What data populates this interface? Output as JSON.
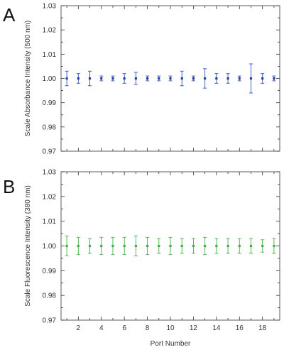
{
  "chart_data": [
    {
      "type": "scatter",
      "panel_label": "A",
      "ylabel": "Scale Absorbance Intensity (500 nm)",
      "xlabel": "",
      "ylim": [
        0.97,
        1.03
      ],
      "xlim": [
        0.5,
        19.5
      ],
      "yticks": [
        "0.97",
        "0.98",
        "0.99",
        "1.00",
        "1.01",
        "1.02",
        "1.03"
      ],
      "xticks": [
        "2",
        "4",
        "6",
        "8",
        "10",
        "12",
        "14",
        "16",
        "18"
      ],
      "x_tick_values": [
        2,
        4,
        6,
        8,
        10,
        12,
        14,
        16,
        18
      ],
      "show_x_tick_labels": false,
      "grid": false,
      "marker_color": "#1f3fa0",
      "error_color": "#3050b8",
      "series": [
        {
          "x": [
            1,
            2,
            3,
            4,
            5,
            6,
            7,
            8,
            9,
            10,
            11,
            12,
            13,
            14,
            15,
            16,
            17,
            18,
            19
          ],
          "y": [
            1.0,
            1.0,
            1.0,
            1.0,
            1.0,
            1.0,
            1.0,
            1.0,
            1.0,
            1.0,
            1.0,
            1.0,
            1.0,
            1.0,
            1.0,
            1.0,
            1.0,
            1.0,
            1.0
          ],
          "yerr": [
            0.003,
            0.002,
            0.003,
            0.001,
            0.001,
            0.002,
            0.0025,
            0.001,
            0.001,
            0.001,
            0.003,
            0.001,
            0.004,
            0.002,
            0.002,
            0.001,
            0.006,
            0.002,
            0.001
          ]
        }
      ]
    },
    {
      "type": "scatter",
      "panel_label": "B",
      "ylabel": "Scale Fluorescence Intensity (380 nm)",
      "xlabel": "Port Number",
      "ylim": [
        0.97,
        1.03
      ],
      "xlim": [
        0.5,
        19.5
      ],
      "yticks": [
        "0.97",
        "0.98",
        "0.99",
        "1.00",
        "1.01",
        "1.02",
        "1.03"
      ],
      "xticks": [
        "2",
        "4",
        "6",
        "8",
        "10",
        "12",
        "14",
        "16",
        "18"
      ],
      "x_tick_values": [
        2,
        4,
        6,
        8,
        10,
        12,
        14,
        16,
        18
      ],
      "show_x_tick_labels": true,
      "grid": false,
      "marker_color": "#44b044",
      "error_color": "#44b044",
      "series": [
        {
          "x": [
            1,
            2,
            3,
            4,
            5,
            6,
            7,
            8,
            9,
            10,
            11,
            12,
            13,
            14,
            15,
            16,
            17,
            18,
            19
          ],
          "y": [
            1.0,
            1.0,
            1.0,
            1.0,
            1.0,
            1.0,
            1.0,
            1.0,
            1.0,
            1.0,
            1.0,
            1.0,
            1.0,
            1.0,
            1.0,
            1.0,
            1.0,
            1.0,
            1.0
          ],
          "yerr": [
            0.004,
            0.0035,
            0.003,
            0.0035,
            0.0035,
            0.0035,
            0.004,
            0.0035,
            0.003,
            0.0035,
            0.003,
            0.003,
            0.0035,
            0.003,
            0.003,
            0.003,
            0.003,
            0.0025,
            0.003
          ]
        }
      ]
    }
  ]
}
